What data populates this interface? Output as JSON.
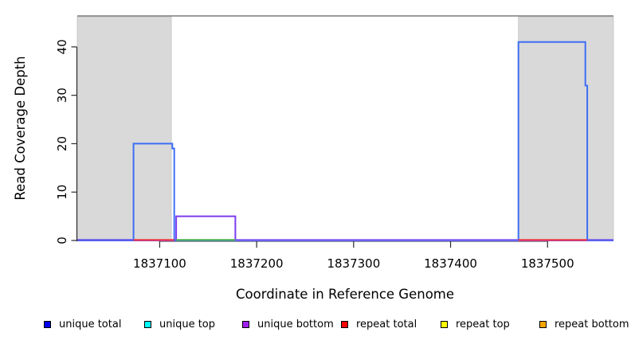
{
  "chart_data": {
    "type": "line",
    "title": "",
    "xlabel": "Coordinate in Reference Genome",
    "ylabel": "Read Coverage Depth",
    "xlim": [
      1837015,
      1837568
    ],
    "ylim": [
      0,
      46.4
    ],
    "x_ticks": [
      1837100,
      1837200,
      1837300,
      1837400,
      1837500
    ],
    "y_ticks": [
      0,
      10,
      20,
      30,
      40
    ],
    "grid": false,
    "legend_position": "bottom",
    "box_top_line_color": "#7d7d7d",
    "shade_color": "#d9d9d9",
    "shade_border_color": "#c3c3c3",
    "shaded_regions": [
      [
        1837015,
        1837112
      ],
      [
        1837470,
        1837568
      ]
    ],
    "series": [
      {
        "name": "unique total",
        "color": "#3d6ef5",
        "legend_color": "#0000ee",
        "points": [
          [
            1837015,
            0
          ],
          [
            1837073,
            0
          ],
          [
            1837073,
            20
          ],
          [
            1837113,
            20
          ],
          [
            1837113,
            19
          ],
          [
            1837115,
            19
          ],
          [
            1837115,
            0
          ],
          [
            1837470,
            0
          ],
          [
            1837470,
            41
          ],
          [
            1837539,
            41
          ],
          [
            1837539,
            32
          ],
          [
            1837541,
            32
          ],
          [
            1837541,
            0
          ],
          [
            1837568,
            0
          ]
        ]
      },
      {
        "name": "unique top",
        "color": "#00e5e5",
        "legend_color": "#00ffff",
        "points": [
          [
            1837015,
            0
          ],
          [
            1837568,
            0
          ]
        ]
      },
      {
        "name": "unique bottom",
        "color": "#7d3bf0",
        "legend_color": "#a020f0",
        "points": [
          [
            1837015,
            0
          ],
          [
            1837117,
            0
          ],
          [
            1837117,
            5
          ],
          [
            1837178,
            5
          ],
          [
            1837178,
            0
          ],
          [
            1837568,
            0
          ]
        ]
      },
      {
        "name": "repeat total",
        "color": "#ee3a44",
        "legend_color": "#ff0000",
        "points": [
          [
            1837015,
            0
          ],
          [
            1837568,
            0
          ]
        ]
      },
      {
        "name": "repeat top",
        "color": "#f5f500",
        "legend_color": "#ffff00",
        "points": [
          [
            1837015,
            0
          ],
          [
            1837568,
            0
          ]
        ]
      },
      {
        "name": "repeat bottom",
        "color": "#ffa500",
        "legend_color": "#ffa500",
        "points": [
          [
            1837015,
            0
          ],
          [
            1837568,
            0
          ]
        ]
      }
    ],
    "baseline_segments": [
      {
        "x": [
          1837015,
          1837073
        ],
        "color": "#6157ee"
      },
      {
        "x": [
          1837073,
          1837115
        ],
        "color": "#ee3a44"
      },
      {
        "x": [
          1837115,
          1837117
        ],
        "color": "#6157ee"
      },
      {
        "x": [
          1837117,
          1837178
        ],
        "color": "#4caf50"
      },
      {
        "x": [
          1837178,
          1837470
        ],
        "color": "#7b5cf0"
      },
      {
        "x": [
          1837470,
          1837541
        ],
        "color": "#ee3a44"
      },
      {
        "x": [
          1837541,
          1837568
        ],
        "color": "#6a5aee"
      }
    ],
    "legend": [
      {
        "label": "unique total",
        "color": "#0000ee"
      },
      {
        "label": "unique top",
        "color": "#00ffff"
      },
      {
        "label": "unique bottom",
        "color": "#a020f0"
      },
      {
        "label": "repeat total",
        "color": "#ff0000"
      },
      {
        "label": "repeat top",
        "color": "#ffff00"
      },
      {
        "label": "repeat bottom",
        "color": "#ffa500"
      }
    ]
  }
}
